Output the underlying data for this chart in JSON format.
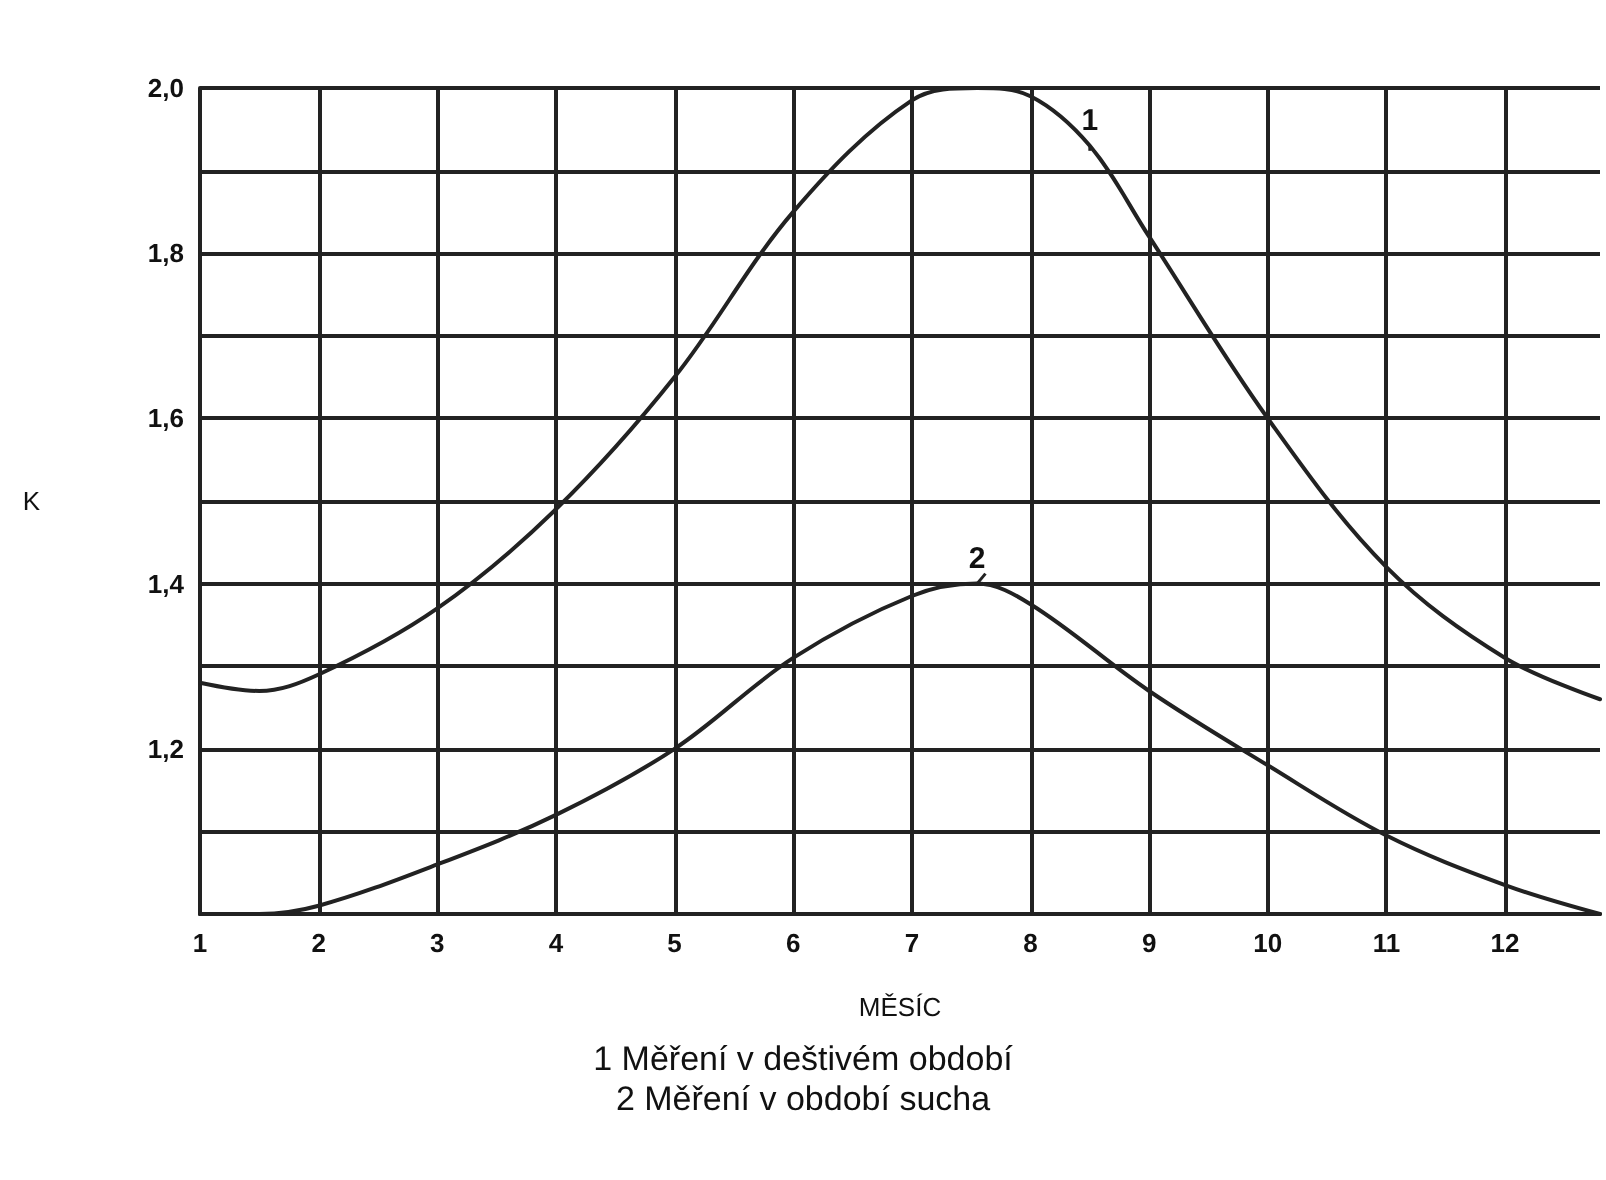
{
  "chart_data": {
    "type": "line",
    "xlabel": "MĚSÍC",
    "ylabel": "K",
    "annotations": [
      "1 Měření v deštivém období",
      "2 Měření v období sucha"
    ],
    "xlim": [
      1,
      12.8
    ],
    "xticks": [
      1,
      2,
      3,
      4,
      5,
      6,
      7,
      8,
      9,
      10,
      11,
      12
    ],
    "ylim": [
      1,
      2
    ],
    "yticks": [
      {
        "value": 1,
        "label": null
      },
      {
        "value": 1.1,
        "label": null
      },
      {
        "value": 1.2,
        "label": "1,2"
      },
      {
        "value": 1.3,
        "label": null
      },
      {
        "value": 1.4,
        "label": "1,4"
      },
      {
        "value": 1.5,
        "label": null
      },
      {
        "value": 1.6,
        "label": "1,6"
      },
      {
        "value": 1.7,
        "label": null
      },
      {
        "value": 1.8,
        "label": "1,8"
      },
      {
        "value": 1.9,
        "label": null
      },
      {
        "value": 2,
        "label": "2,0"
      }
    ],
    "grid": true,
    "marker": "none",
    "line_style": "solid",
    "series": [
      {
        "name": "1",
        "color": "#222222",
        "x": [
          1,
          1.5,
          2,
          3,
          4,
          5,
          6,
          7,
          7.55,
          8,
          8.5,
          9,
          10,
          11,
          12,
          12.8
        ],
        "values": [
          1.28,
          1.27,
          1.29,
          1.37,
          1.49,
          1.65,
          1.85,
          1.985,
          2.0,
          1.99,
          1.93,
          1.82,
          1.6,
          1.42,
          1.31,
          1.26
        ]
      },
      {
        "name": "2",
        "color": "#222222",
        "x": [
          1,
          1.5,
          2,
          3,
          4,
          5,
          6,
          7,
          7.55,
          8,
          9,
          10,
          11,
          12,
          12.8
        ],
        "values": [
          1.0,
          1.0,
          1.01,
          1.06,
          1.12,
          1.2,
          1.31,
          1.385,
          1.4,
          1.375,
          1.27,
          1.18,
          1.095,
          1.035,
          1.0
        ]
      }
    ]
  }
}
